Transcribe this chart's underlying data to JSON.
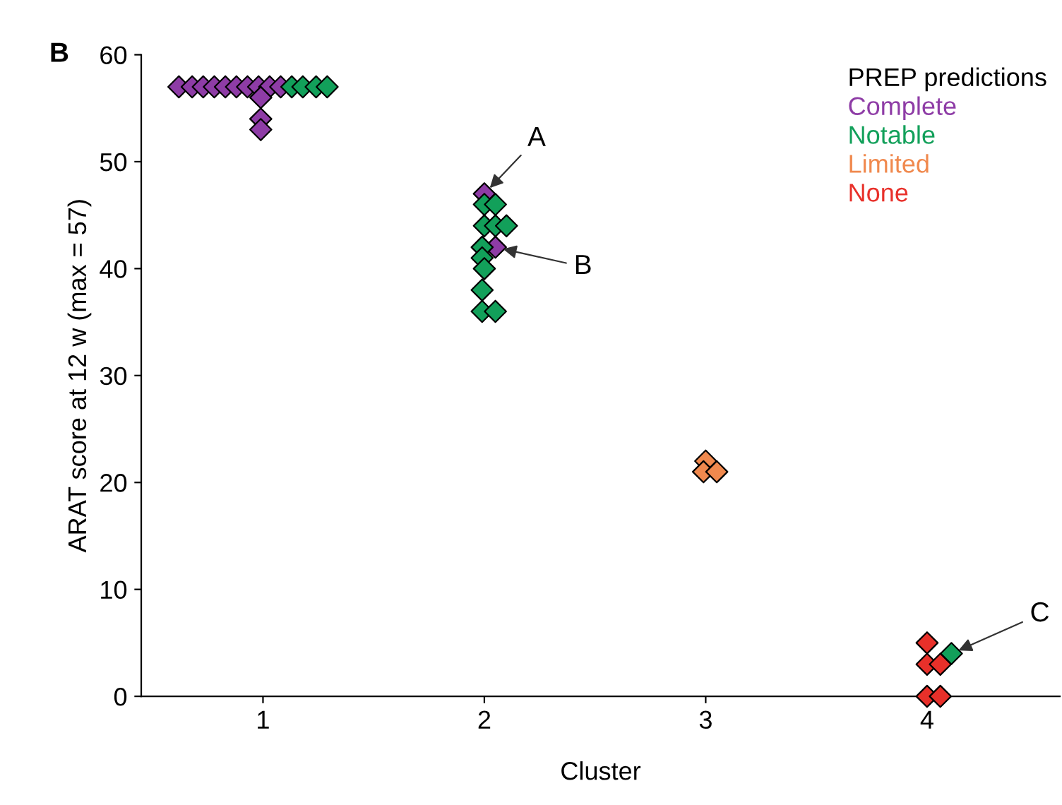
{
  "chart_data": {
    "type": "scatter",
    "xlabel": "Cluster",
    "ylabel": "ARAT score at 12 w (max = 57)",
    "legend_title": "PREP predictions",
    "legend": "top right",
    "marker": "diamond",
    "grid": false,
    "xlim": [
      0.45,
      4.6
    ],
    "xticks": [
      1,
      2,
      3,
      4
    ],
    "ylim": [
      0,
      60
    ],
    "yticks": [
      0,
      10,
      20,
      30,
      40,
      50,
      60
    ],
    "series": [
      {
        "name": "Complete",
        "color": "#8e3ca6",
        "x": [
          0.62,
          0.68,
          0.73,
          0.78,
          0.83,
          0.88,
          0.93,
          0.98,
          1.03,
          1.08,
          0.99,
          0.99,
          0.99,
          2.0,
          2.05
        ],
        "values": [
          57,
          57,
          57,
          57,
          57,
          57,
          57,
          57,
          57,
          57,
          56,
          54,
          53,
          47,
          42
        ]
      },
      {
        "name": "Notable",
        "color": "#12a05a",
        "x": [
          1.13,
          1.18,
          1.24,
          1.29,
          2.0,
          2.05,
          2.0,
          2.05,
          2.1,
          1.99,
          1.99,
          2.0,
          1.99,
          1.99,
          2.05,
          4.11
        ],
        "values": [
          57,
          57,
          57,
          57,
          46,
          46,
          44,
          44,
          44,
          42,
          41,
          40,
          38,
          36,
          36,
          4
        ]
      },
      {
        "name": "Limited",
        "color": "#f0894e",
        "x": [
          3.0,
          2.99,
          3.05
        ],
        "values": [
          22,
          21,
          21
        ]
      },
      {
        "name": "None",
        "color": "#e8302a",
        "x": [
          4.0,
          4.0,
          4.06,
          4.0,
          4.06
        ],
        "values": [
          5,
          3,
          3,
          0,
          0
        ]
      }
    ],
    "annotations": [
      "B",
      {
        "text": "A",
        "x": 2.0,
        "y": 47
      },
      {
        "text": "B",
        "x": 2.05,
        "y": 42
      },
      {
        "text": "C",
        "x": 4.11,
        "y": 4
      }
    ]
  }
}
